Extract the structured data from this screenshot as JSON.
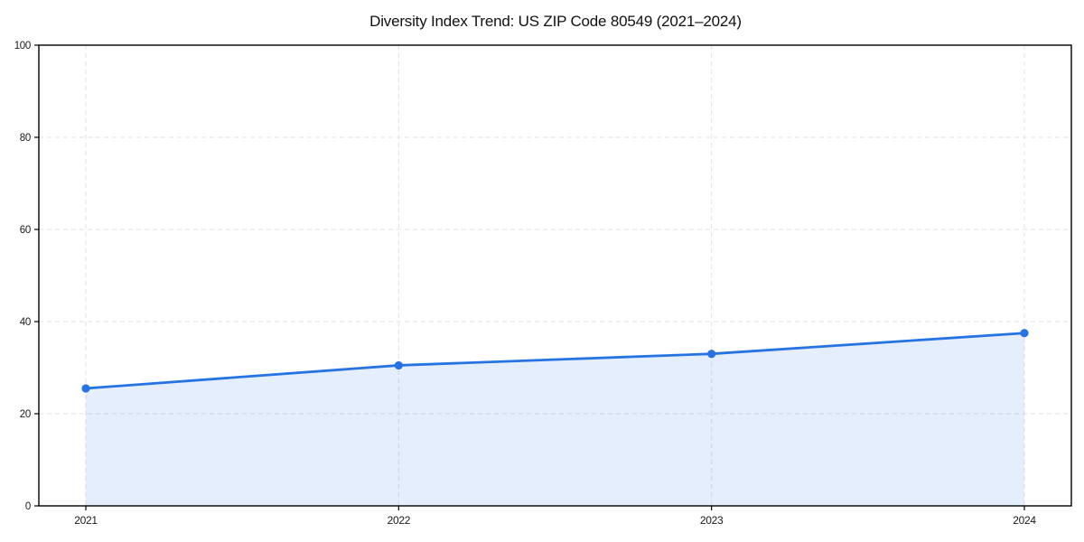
{
  "chart_data": {
    "type": "line",
    "title": "Diversity Index Trend: US ZIP Code 80549 (2021–2024)",
    "xlabel": "",
    "ylabel": "",
    "categories": [
      "2021",
      "2022",
      "2023",
      "2024"
    ],
    "series": [
      {
        "name": "Diversity Index",
        "values": [
          25.5,
          30.5,
          33,
          37.5
        ]
      }
    ],
    "ylim": [
      0,
      100
    ],
    "yticks": [
      0,
      20,
      40,
      60,
      80,
      100
    ],
    "grid": "on",
    "grid_style": "dashed",
    "legend_position": "none",
    "colors": {
      "line": "#2674e4",
      "marker": "#2674e4",
      "area_fill": "rgba(38,116,228,0.12)",
      "grid": "#e2e2e2",
      "spine": "#000000",
      "text": "#111111",
      "background": "#ffffff"
    }
  }
}
